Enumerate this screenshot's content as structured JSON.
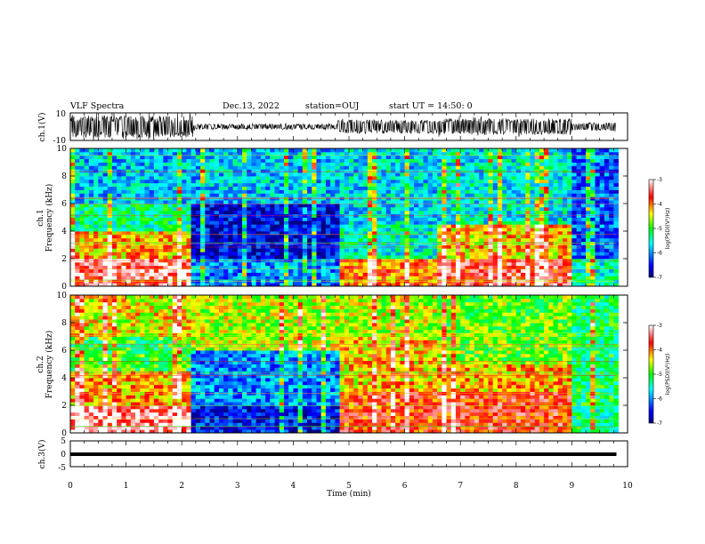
{
  "header": {
    "title": "VLF Spectra",
    "date": "Dec.13, 2022",
    "station": "station=OUJ",
    "start": "start UT = 14:50: 0"
  },
  "panels": {
    "ch1_wave": {
      "ylabel": "ch.1(V)",
      "ytop": "10",
      "ybot": "-10"
    },
    "ch1_spec": {
      "ylabel1": "ch.1",
      "ylabel2": "Frequency (kHz)"
    },
    "ch2_spec": {
      "ylabel1": "ch.2",
      "ylabel2": "Frequency (kHz)"
    },
    "ch3_wave": {
      "ylabel": "ch.3(V)",
      "ytop": "5",
      "ymid": "0",
      "ybot": "-5"
    },
    "colorbar": {
      "label": "log(PSD)(V²/Hz)"
    }
  },
  "xaxis": {
    "label": "Time (min)"
  },
  "colors": {
    "low": "#00007f",
    "mid": "#00ff00",
    "high": "#ff0000",
    "top": "#ffffff"
  },
  "chart_data": [
    {
      "type": "line",
      "title": "ch.1(V)",
      "ylim": [
        -10,
        10
      ],
      "xlim": [
        0,
        10
      ],
      "envelope_segments": [
        {
          "x": [
            0.0,
            2.2
          ],
          "amplitude": 8
        },
        {
          "x": [
            2.2,
            4.8
          ],
          "amplitude": 2
        },
        {
          "x": [
            4.8,
            6.6
          ],
          "amplitude": 5
        },
        {
          "x": [
            6.6,
            9.0
          ],
          "amplitude": 6
        },
        {
          "x": [
            9.0,
            9.8
          ],
          "amplitude": 3
        }
      ]
    },
    {
      "type": "heatmap",
      "title": "ch.1",
      "xlabel": "Time (min)",
      "ylabel": "Frequency (kHz)",
      "xlim": [
        0,
        10
      ],
      "ylim": [
        0,
        10
      ],
      "xticks": [
        0,
        1,
        2,
        3,
        4,
        5,
        6,
        7,
        8,
        9,
        10
      ],
      "yticks": [
        0,
        2,
        4,
        6,
        8,
        10
      ],
      "zlabel": "log(PSD)(V²/Hz)",
      "zlim": [
        -7,
        -3
      ],
      "zticks": [
        -7,
        -6,
        -5,
        -4,
        -3
      ],
      "time_segments": [
        {
          "x": [
            0.0,
            2.2
          ],
          "bands": [
            {
              "f": [
                0,
                2
              ],
              "level": -3.4
            },
            {
              "f": [
                2,
                4
              ],
              "level": -4.2
            },
            {
              "f": [
                4,
                6
              ],
              "level": -5.3
            },
            {
              "f": [
                6,
                10
              ],
              "level": -5.8
            }
          ]
        },
        {
          "x": [
            2.2,
            4.8
          ],
          "bands": [
            {
              "f": [
                0,
                2
              ],
              "level": -6.0
            },
            {
              "f": [
                2,
                6
              ],
              "level": -6.6
            },
            {
              "f": [
                6,
                10
              ],
              "level": -5.8
            }
          ]
        },
        {
          "x": [
            4.8,
            6.6
          ],
          "bands": [
            {
              "f": [
                0,
                2
              ],
              "level": -4.0
            },
            {
              "f": [
                2,
                4.5
              ],
              "level": -5.5
            },
            {
              "f": [
                4.5,
                10
              ],
              "level": -5.7
            }
          ]
        },
        {
          "x": [
            6.6,
            9.0
          ],
          "bands": [
            {
              "f": [
                0,
                2
              ],
              "level": -3.6
            },
            {
              "f": [
                2,
                4.5
              ],
              "level": -4.3
            },
            {
              "f": [
                4.5,
                10
              ],
              "level": -5.6
            }
          ]
        },
        {
          "x": [
            9.0,
            9.8
          ],
          "bands": [
            {
              "f": [
                0,
                2
              ],
              "level": -5.5
            },
            {
              "f": [
                2,
                10
              ],
              "level": -6.2
            }
          ]
        }
      ]
    },
    {
      "type": "heatmap",
      "title": "ch.2",
      "xlabel": "Time (min)",
      "ylabel": "Frequency (kHz)",
      "xlim": [
        0,
        10
      ],
      "ylim": [
        0,
        10
      ],
      "xticks": [
        0,
        1,
        2,
        3,
        4,
        5,
        6,
        7,
        8,
        9,
        10
      ],
      "yticks": [
        0,
        2,
        4,
        6,
        8,
        10
      ],
      "zlabel": "log(PSD)(V²/Hz)",
      "zlim": [
        -7,
        -3
      ],
      "zticks": [
        -7,
        -6,
        -5,
        -4,
        -3
      ],
      "time_segments": [
        {
          "x": [
            0.0,
            2.2
          ],
          "bands": [
            {
              "f": [
                0,
                2
              ],
              "level": -3.3
            },
            {
              "f": [
                2,
                4.5
              ],
              "level": -4.2
            },
            {
              "f": [
                4.5,
                7
              ],
              "level": -5.0
            },
            {
              "f": [
                7,
                10
              ],
              "level": -4.4
            }
          ]
        },
        {
          "x": [
            2.2,
            4.8
          ],
          "bands": [
            {
              "f": [
                0,
                2
              ],
              "level": -6.5
            },
            {
              "f": [
                2,
                6
              ],
              "level": -6.0
            },
            {
              "f": [
                6,
                10
              ],
              "level": -4.6
            }
          ]
        },
        {
          "x": [
            4.8,
            6.6
          ],
          "bands": [
            {
              "f": [
                0,
                3
              ],
              "level": -3.8
            },
            {
              "f": [
                3,
                7
              ],
              "level": -4.3
            },
            {
              "f": [
                7,
                10
              ],
              "level": -4.6
            }
          ]
        },
        {
          "x": [
            6.6,
            9.0
          ],
          "bands": [
            {
              "f": [
                0,
                3
              ],
              "level": -3.7
            },
            {
              "f": [
                3,
                5
              ],
              "level": -4.2
            },
            {
              "f": [
                5,
                10
              ],
              "level": -4.8
            }
          ]
        },
        {
          "x": [
            9.0,
            9.8
          ],
          "bands": [
            {
              "f": [
                0,
                2
              ],
              "level": -5.3
            },
            {
              "f": [
                2,
                10
              ],
              "level": -5.2
            }
          ]
        }
      ]
    },
    {
      "type": "line",
      "title": "ch.3(V)",
      "ylim": [
        -5,
        5
      ],
      "xlim": [
        0,
        10
      ],
      "constant_value": 0,
      "x_extent": [
        0,
        9.8
      ]
    }
  ]
}
